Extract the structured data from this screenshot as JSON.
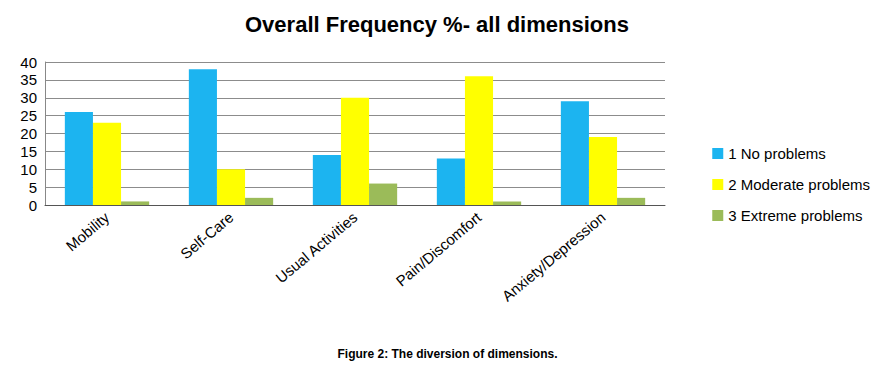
{
  "chart_data": {
    "type": "bar",
    "title": "Overall Frequency %- all dimensions",
    "caption": "Figure 2: The diversion of dimensions.",
    "categories": [
      "Mobility",
      "Self-Care",
      "Usual Activities",
      "Pain/Discomfort",
      "Anxiety/Depression"
    ],
    "series": [
      {
        "name": "1 No problems",
        "color": "#1cb4f0",
        "values": [
          26,
          38,
          14,
          13,
          29
        ]
      },
      {
        "name": "2 Moderate problems",
        "color": "#ffff00",
        "values": [
          23,
          10,
          30,
          36,
          19
        ]
      },
      {
        "name": "3 Extreme problems",
        "color": "#9bbb59",
        "values": [
          1,
          2,
          6,
          1,
          2
        ]
      }
    ],
    "ylim": [
      0,
      40
    ],
    "yticks": [
      0,
      5,
      10,
      15,
      20,
      25,
      30,
      35,
      40
    ],
    "grid": true,
    "legend": "right"
  }
}
